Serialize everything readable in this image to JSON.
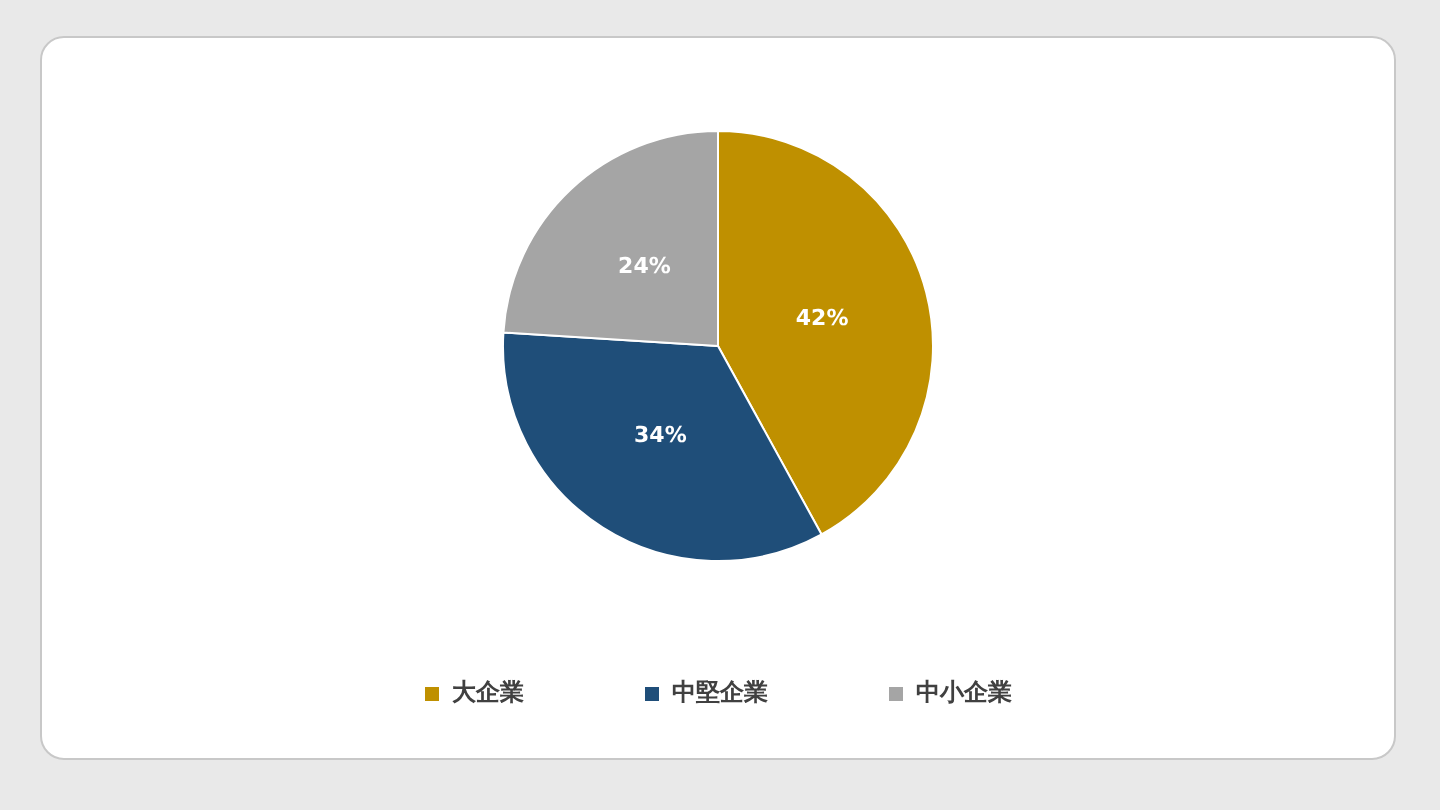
{
  "chart_data": {
    "type": "pie",
    "categories": [
      "大企業",
      "中堅企業",
      "中小企業"
    ],
    "values": [
      42,
      34,
      24
    ],
    "colors": [
      "#bf9000",
      "#1f4e79",
      "#a5a5a5"
    ],
    "value_labels": [
      "42%",
      "34%",
      "24%"
    ],
    "legend": "bottom"
  }
}
